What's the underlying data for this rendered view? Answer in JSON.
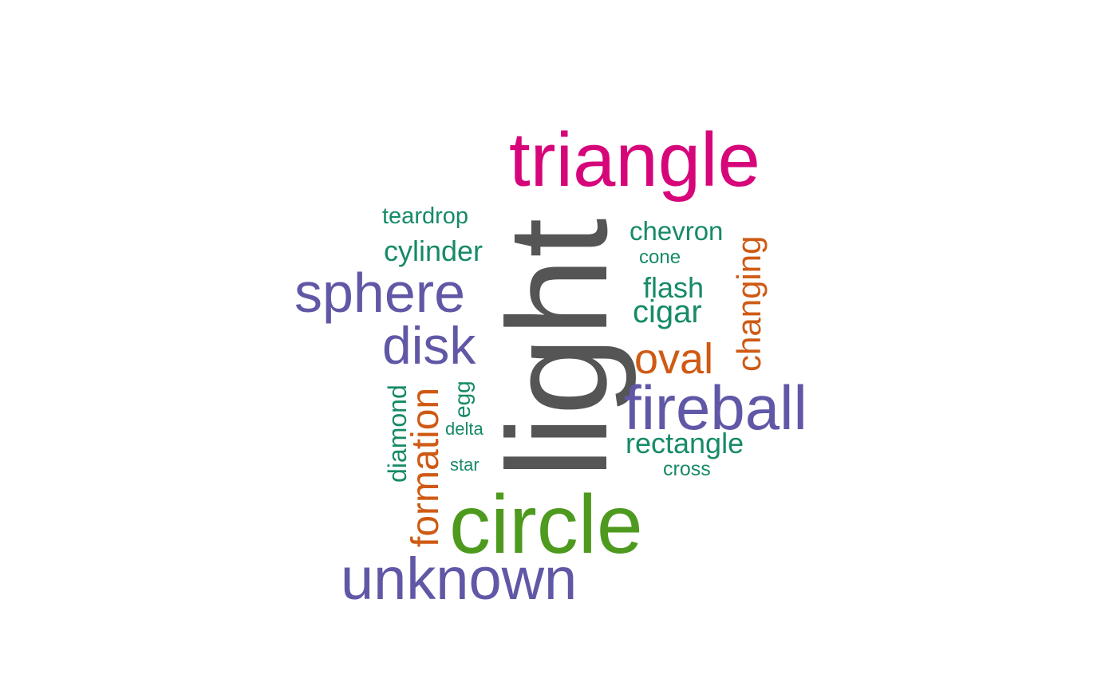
{
  "palette": {
    "magenta": "#d6067a",
    "gray": "#555555",
    "purple": "#6058a6",
    "green": "#4d9a1e",
    "teal": "#178a68",
    "orange": "#cf5a14"
  },
  "words": [
    {
      "text": "light",
      "color": "gray",
      "vertical": true
    },
    {
      "text": "triangle",
      "color": "magenta",
      "vertical": false
    },
    {
      "text": "circle",
      "color": "green",
      "vertical": false
    },
    {
      "text": "unknown",
      "color": "purple",
      "vertical": false
    },
    {
      "text": "sphere",
      "color": "purple",
      "vertical": false
    },
    {
      "text": "fireball",
      "color": "purple",
      "vertical": false
    },
    {
      "text": "disk",
      "color": "purple",
      "vertical": false
    },
    {
      "text": "oval",
      "color": "orange",
      "vertical": false
    },
    {
      "text": "formation",
      "color": "orange",
      "vertical": true
    },
    {
      "text": "changing",
      "color": "orange",
      "vertical": true
    },
    {
      "text": "cigar",
      "color": "teal",
      "vertical": false
    },
    {
      "text": "rectangle",
      "color": "teal",
      "vertical": false
    },
    {
      "text": "cylinder",
      "color": "teal",
      "vertical": false
    },
    {
      "text": "flash",
      "color": "teal",
      "vertical": false
    },
    {
      "text": "chevron",
      "color": "teal",
      "vertical": false
    },
    {
      "text": "diamond",
      "color": "teal",
      "vertical": true
    },
    {
      "text": "teardrop",
      "color": "teal",
      "vertical": false
    },
    {
      "text": "egg",
      "color": "teal",
      "vertical": true
    },
    {
      "text": "cross",
      "color": "teal",
      "vertical": false
    },
    {
      "text": "cone",
      "color": "teal",
      "vertical": false
    },
    {
      "text": "delta",
      "color": "teal",
      "vertical": false
    },
    {
      "text": "star",
      "color": "teal",
      "vertical": false
    }
  ]
}
